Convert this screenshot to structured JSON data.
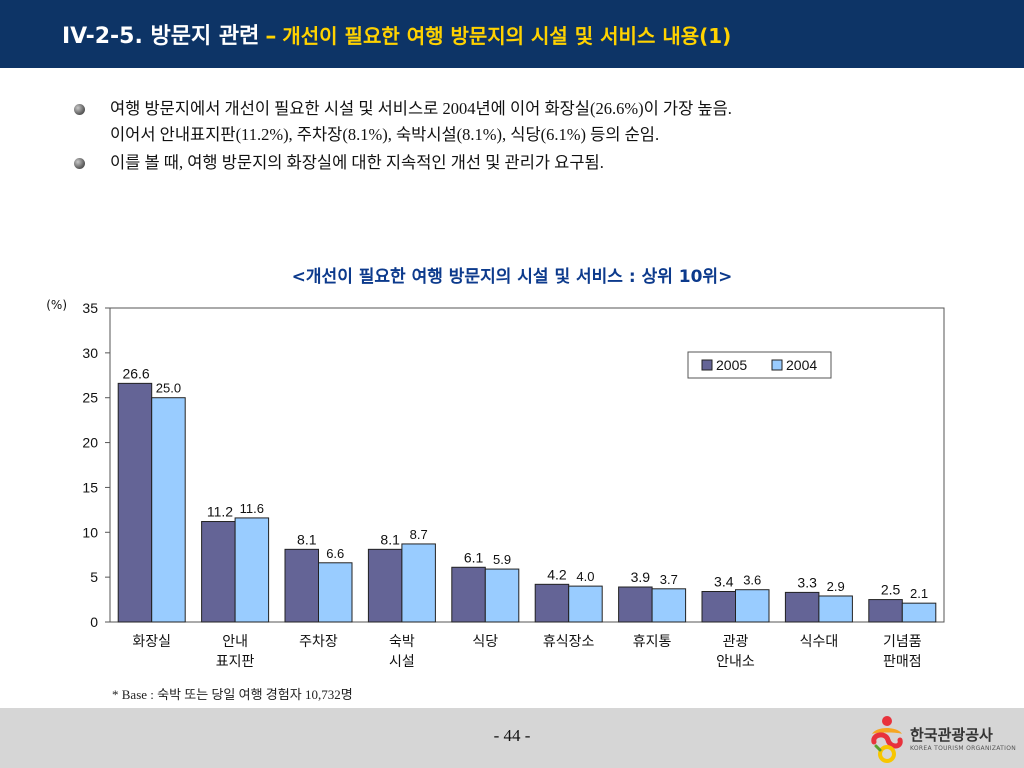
{
  "header": {
    "section": "IV-2-5. 방문지 관련",
    "separator": "–",
    "subtitle": "개선이 필요한 여행 방문지의 시설 및 서비스 내용(1)"
  },
  "bullets": [
    {
      "lines": [
        "여행 방문지에서 개선이 필요한 시설 및 서비스로 2004년에 이어 화장실(26.6%)이 가장 높음.",
        "이어서 안내표지판(11.2%), 주차장(8.1%), 숙박시설(8.1%), 식당(6.1%) 등의 순임."
      ]
    },
    {
      "lines": [
        "이를 볼 때, 여행 방문지의 화장실에 대한 지속적인 개선 및 관리가 요구됨."
      ]
    }
  ],
  "chart_title": "<개선이 필요한 여행 방문지의 시설 및 서비스 : 상위 10위>",
  "chart_data": {
    "type": "bar",
    "title": "<개선이 필요한 여행 방문지의 시설 및 서비스 : 상위 10위>",
    "ylabel": "(%)",
    "ylim": [
      0,
      35
    ],
    "yticks": [
      0,
      5,
      10,
      15,
      20,
      25,
      30,
      35
    ],
    "legend_position": "top-right",
    "grid": false,
    "categories": [
      [
        "화장실"
      ],
      [
        "안내",
        "표지판"
      ],
      [
        "주차장"
      ],
      [
        "숙박",
        "시설"
      ],
      [
        "식당"
      ],
      [
        "휴식장소"
      ],
      [
        "휴지통"
      ],
      [
        "관광",
        "안내소"
      ],
      [
        "식수대"
      ],
      [
        "기념품",
        "판매점"
      ]
    ],
    "series": [
      {
        "name": "2005",
        "color": "#646496",
        "values": [
          26.6,
          11.2,
          8.1,
          8.1,
          6.1,
          4.2,
          3.9,
          3.4,
          3.3,
          2.5
        ]
      },
      {
        "name": "2004",
        "color": "#99ccff",
        "values": [
          25.0,
          11.6,
          6.6,
          8.7,
          5.9,
          4.0,
          3.7,
          3.6,
          2.9,
          2.1
        ]
      }
    ]
  },
  "footnote": "* Base : 숙박 또는 당일 여행 경험자 10,732명",
  "page_number": "- 44 -",
  "logo": {
    "org_name": "한국관광공사",
    "org_sub": "KOREA TOURISM ORGANIZATION"
  }
}
